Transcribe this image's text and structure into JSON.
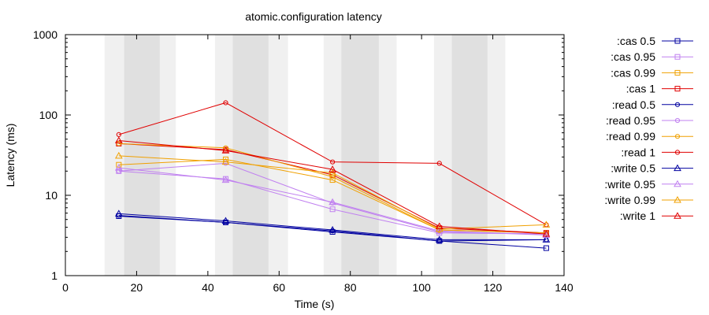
{
  "chart_data": {
    "type": "line",
    "title": "atomic.configuration latency",
    "xlabel": "Time (s)",
    "ylabel": "Latency (ms)",
    "xlim": [
      0,
      140
    ],
    "ylim": [
      1,
      1000
    ],
    "yscale": "log",
    "x_ticks": [
      0,
      20,
      40,
      60,
      80,
      100,
      120,
      140
    ],
    "x_tick_labels": [
      "0",
      "20",
      "40",
      "60",
      "80",
      "100",
      "120",
      "140"
    ],
    "y_ticks": [
      1,
      10,
      100,
      1000
    ],
    "y_tick_labels": [
      "1",
      "10",
      "100",
      "1000"
    ],
    "grid": false,
    "legend_position": "right",
    "bands": [
      {
        "x0": 11,
        "x1": 31,
        "color": "#f0f0f0"
      },
      {
        "x0": 16.5,
        "x1": 26.5,
        "color": "#e0e0e0"
      },
      {
        "x0": 42,
        "x1": 62.5,
        "color": "#f0f0f0"
      },
      {
        "x0": 47,
        "x1": 57,
        "color": "#e0e0e0"
      },
      {
        "x0": 72.5,
        "x1": 93,
        "color": "#f0f0f0"
      },
      {
        "x0": 77.5,
        "x1": 88,
        "color": "#e0e0e0"
      },
      {
        "x0": 103.5,
        "x1": 123.5,
        "color": "#f0f0f0"
      },
      {
        "x0": 108.5,
        "x1": 118.5,
        "color": "#e0e0e0"
      }
    ],
    "series": [
      {
        "name": ":cas 0.5",
        "color": "#0000a0",
        "marker": "square",
        "x": [
          15,
          45,
          75,
          105,
          135
        ],
        "values": [
          5.5,
          4.6,
          3.5,
          2.7,
          2.2
        ]
      },
      {
        "name": ":cas 0.95",
        "color": "#c080f0",
        "marker": "square",
        "x": [
          15,
          45,
          75,
          105,
          135
        ],
        "values": [
          20,
          16,
          6.7,
          3.4,
          3.3
        ]
      },
      {
        "name": ":cas 0.99",
        "color": "#f0a000",
        "marker": "square",
        "x": [
          15,
          45,
          75,
          105,
          135
        ],
        "values": [
          24,
          28,
          15.5,
          3.7,
          3.4
        ]
      },
      {
        "name": ":cas 1",
        "color": "#e00000",
        "marker": "square",
        "x": [
          15,
          45,
          75,
          105,
          135
        ],
        "values": [
          44,
          37,
          18,
          3.9,
          3.4
        ]
      },
      {
        "name": ":read 0.5",
        "color": "#0000a0",
        "marker": "circle",
        "x": [
          15,
          45,
          75,
          105,
          135
        ],
        "values": [
          5.6,
          4.6,
          3.6,
          2.7,
          2.8
        ]
      },
      {
        "name": ":read 0.95",
        "color": "#c080f0",
        "marker": "circle",
        "x": [
          15,
          45,
          75,
          105,
          135
        ],
        "values": [
          20,
          25,
          8,
          3.5,
          3.3
        ]
      },
      {
        "name": ":read 0.99",
        "color": "#f0a000",
        "marker": "circle",
        "x": [
          15,
          45,
          75,
          105,
          135
        ],
        "values": [
          44,
          39,
          17,
          3.7,
          3.4
        ]
      },
      {
        "name": ":read 1",
        "color": "#e00000",
        "marker": "circle",
        "x": [
          15,
          45,
          75,
          105,
          135
        ],
        "values": [
          57,
          142,
          26,
          25,
          4.3
        ]
      },
      {
        "name": ":write 0.5",
        "color": "#0000a0",
        "marker": "triangle",
        "x": [
          15,
          45,
          75,
          105,
          135
        ],
        "values": [
          5.9,
          4.8,
          3.7,
          2.8,
          2.8
        ]
      },
      {
        "name": ":write 0.95",
        "color": "#c080f0",
        "marker": "triangle",
        "x": [
          15,
          45,
          75,
          105,
          135
        ],
        "values": [
          22,
          15.5,
          8.2,
          3.6,
          3.2
        ]
      },
      {
        "name": ":write 0.99",
        "color": "#f0a000",
        "marker": "triangle",
        "x": [
          15,
          45,
          75,
          105,
          135
        ],
        "values": [
          31,
          26,
          19,
          3.8,
          4.3
        ]
      },
      {
        "name": ":write 1",
        "color": "#e00000",
        "marker": "triangle",
        "x": [
          15,
          45,
          75,
          105,
          135
        ],
        "values": [
          48,
          36,
          21,
          4.1,
          3.3
        ]
      }
    ]
  }
}
